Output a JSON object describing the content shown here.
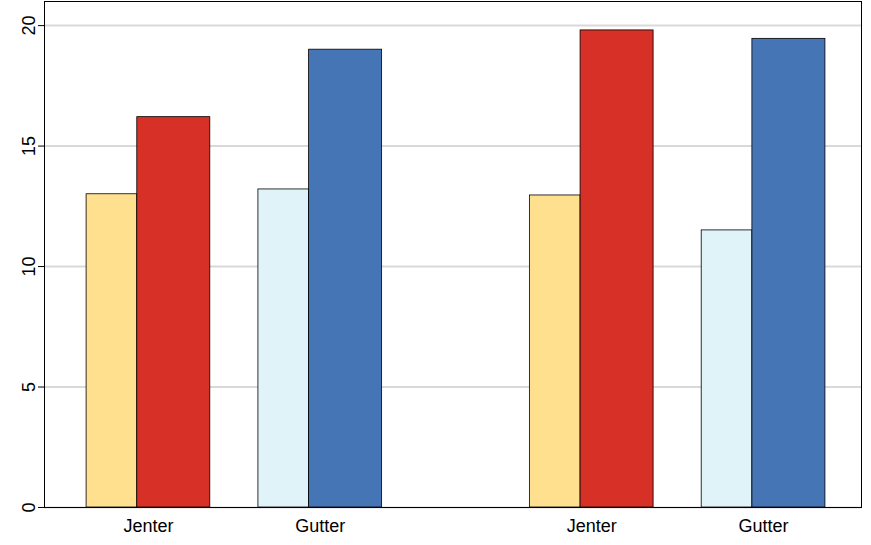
{
  "chart_data": {
    "type": "bar",
    "categories": [
      "Jenter",
      "Gutter",
      "Jenter",
      "Gutter"
    ],
    "series": [
      {
        "colors": [
          "#FFE08F",
          "#E0F3F8",
          "#FFE08F",
          "#E0F3F8"
        ],
        "values": [
          13.0,
          13.2,
          12.95,
          11.5
        ]
      },
      {
        "colors": [
          "#D73027",
          "#4575B4",
          "#D73027",
          "#4575B4"
        ],
        "values": [
          16.2,
          19.0,
          19.8,
          19.45
        ]
      }
    ],
    "ylim": [
      0,
      21
    ],
    "yticks": [
      0,
      5,
      10,
      15,
      20
    ],
    "grid": true
  }
}
